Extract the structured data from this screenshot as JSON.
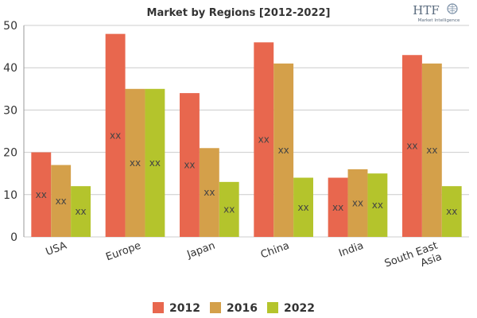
{
  "chart_data": {
    "type": "bar",
    "title": "Market by Regions [2012-2022]",
    "categories": [
      [
        "USA"
      ],
      [
        "Europe"
      ],
      [
        "Japan"
      ],
      [
        "China"
      ],
      [
        "India"
      ],
      [
        "South East",
        "Asia"
      ]
    ],
    "series": [
      {
        "name": "2012",
        "color": "#e8674e",
        "values": [
          20,
          48,
          34,
          46,
          14,
          43
        ]
      },
      {
        "name": "2016",
        "color": "#d4a04a",
        "values": [
          17,
          35,
          21,
          41,
          16,
          41
        ]
      },
      {
        "name": "2022",
        "color": "#b4c42c",
        "values": [
          12,
          35,
          13,
          14,
          15,
          12
        ]
      }
    ],
    "data_label": "xx",
    "ylim": [
      0,
      50
    ],
    "yticks": [
      0,
      10,
      20,
      30,
      40,
      50
    ],
    "xlabel": "",
    "ylabel": "",
    "grid": true,
    "legend_position": "bottom"
  },
  "logo": {
    "text": "HTF",
    "subtext": "Market Intelligence"
  }
}
